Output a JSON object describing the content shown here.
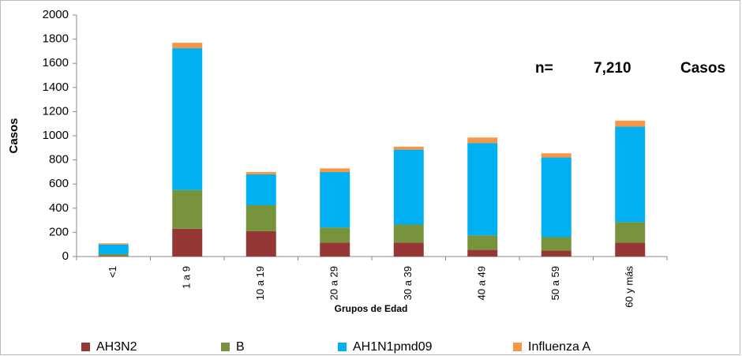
{
  "chart_data": {
    "type": "bar",
    "stacked": true,
    "ylabel": "Casos",
    "xlabel": "Grupos de Edad",
    "annotation": [
      "n=",
      "7,210",
      "Casos"
    ],
    "categories": [
      "<1",
      "1 a 9",
      "10 a 19",
      "20 a 29",
      "30 a 39",
      "40 a 49",
      "50 a 59",
      "60 y más"
    ],
    "series": [
      {
        "name": "AH3N2",
        "color": "#953735",
        "values": [
          5,
          230,
          210,
          115,
          115,
          55,
          50,
          115
        ]
      },
      {
        "name": "B",
        "color": "#77933c",
        "values": [
          15,
          320,
          215,
          125,
          150,
          120,
          110,
          170
        ]
      },
      {
        "name": "AH1N1pmd09",
        "color": "#00b0f0",
        "values": [
          80,
          1175,
          255,
          460,
          620,
          765,
          660,
          790
        ]
      },
      {
        "name": "Influenza A",
        "color": "#f79646",
        "values": [
          10,
          45,
          20,
          30,
          25,
          45,
          35,
          50
        ]
      }
    ],
    "ylim": [
      0,
      2000
    ],
    "yticks": [
      0,
      200,
      400,
      600,
      800,
      1000,
      1200,
      1400,
      1600,
      1800,
      2000
    ]
  }
}
